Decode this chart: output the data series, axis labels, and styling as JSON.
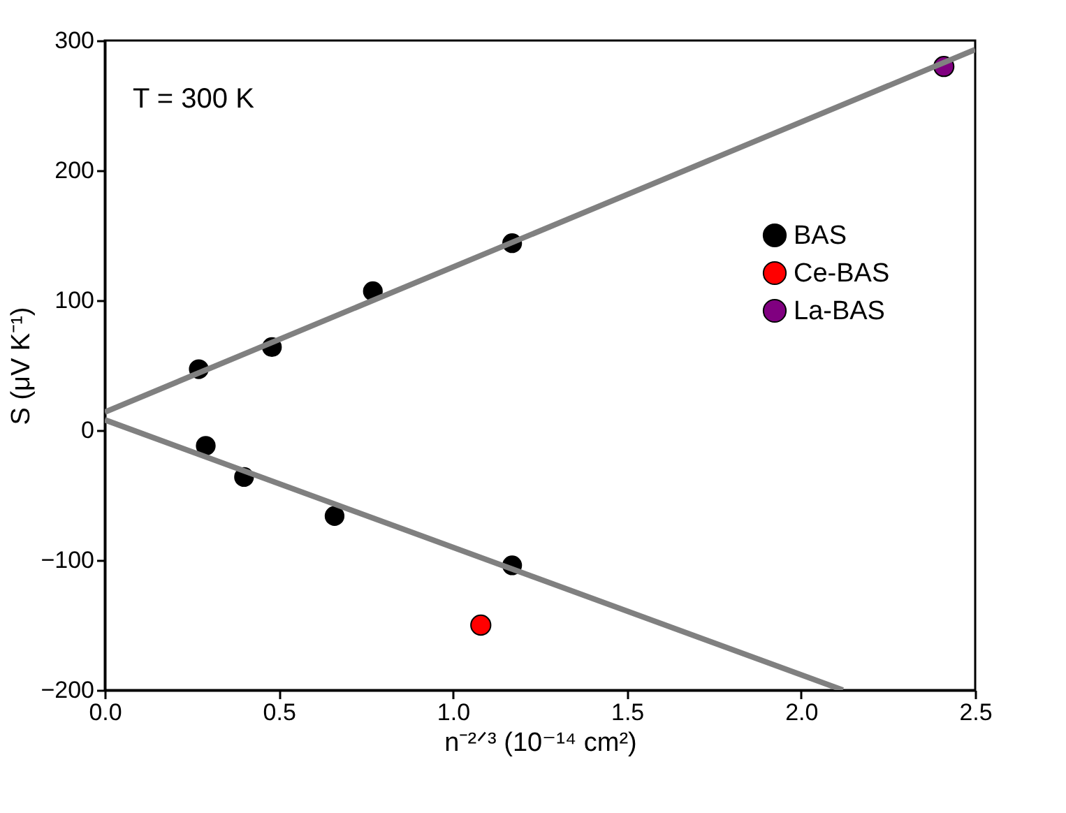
{
  "chart_data": {
    "type": "scatter",
    "xlabel": "n⁻²ᐟ³ (10⁻¹⁴ cm²)",
    "ylabel": "S (μV K⁻¹)",
    "annotations": [
      "T = 300 K"
    ],
    "xlim": [
      0,
      2.5
    ],
    "xticks": [
      {
        "value": 0,
        "label": "0.0"
      },
      0.5,
      {
        "value": 1,
        "label": "1.0"
      },
      1.5,
      {
        "value": 2,
        "label": "2.0"
      },
      2.5
    ],
    "ylim": [
      -200,
      300
    ],
    "yticks": [
      -200,
      -100,
      0,
      100,
      200,
      300
    ],
    "grid": false,
    "legend": "right",
    "series": [
      {
        "name": "BAS",
        "color": "#000000",
        "marker": "circle",
        "x": [
          0.27,
          0.48,
          0.77,
          1.17,
          0.29,
          0.4,
          0.66,
          1.17
        ],
        "values": [
          47,
          64,
          107,
          144,
          -12,
          -36,
          -66,
          -104
        ]
      },
      {
        "name": "Ce-BAS",
        "color": "#ff0000",
        "marker": "circle",
        "x": [
          1.08
        ],
        "values": [
          -150
        ]
      },
      {
        "name": "La-BAS",
        "color": "#800080",
        "marker": "circle",
        "x": [
          2.41
        ],
        "values": [
          280
        ]
      },
      {
        "type": "line",
        "color": "#808080",
        "x": [
          0,
          2.5
        ],
        "values": [
          14,
          293
        ]
      },
      {
        "type": "line",
        "color": "#808080",
        "x": [
          0,
          2.12
        ],
        "values": [
          8,
          -200
        ]
      }
    ]
  }
}
